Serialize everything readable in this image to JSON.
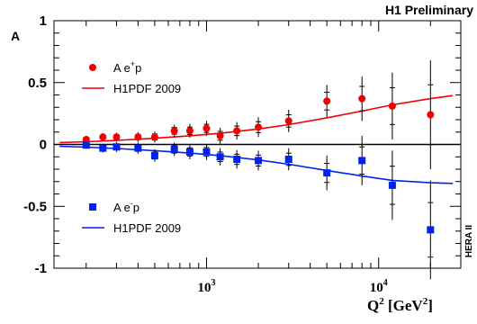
{
  "chart_data": {
    "type": "scatter",
    "header": "H1 Preliminary",
    "side_label": "HERA II",
    "ylabel": "A",
    "xlabel": "Q² [GeV²]",
    "xscale": "log",
    "xlim": [
      130,
      30000
    ],
    "ylim": [
      -1,
      1
    ],
    "yticks": [
      {
        "value": 1,
        "label": "1"
      },
      {
        "value": 0.5,
        "label": "0.5"
      },
      {
        "value": 0,
        "label": "0"
      },
      {
        "value": -0.5,
        "label": "-0.5"
      },
      {
        "value": -1,
        "label": "-1"
      }
    ],
    "xticks": [
      {
        "value": 1000,
        "base": "10",
        "exp": "3"
      },
      {
        "value": 10000,
        "base": "10",
        "exp": "4"
      }
    ],
    "zero_line": true,
    "legend_placement": "left, inside plot",
    "series": [
      {
        "name": "A e⁺p",
        "kind": "data",
        "marker": "circle",
        "color": "#ee0000",
        "points": [
          {
            "x": 200,
            "y": 0.04,
            "err": 0.025
          },
          {
            "x": 250,
            "y": 0.06,
            "err": 0.03
          },
          {
            "x": 300,
            "y": 0.06,
            "err": 0.035
          },
          {
            "x": 400,
            "y": 0.06,
            "err": 0.04
          },
          {
            "x": 500,
            "y": 0.06,
            "err": 0.045
          },
          {
            "x": 650,
            "y": 0.11,
            "err": 0.05
          },
          {
            "x": 800,
            "y": 0.11,
            "err": 0.055
          },
          {
            "x": 1000,
            "y": 0.13,
            "err": 0.06
          },
          {
            "x": 1200,
            "y": 0.07,
            "err": 0.065
          },
          {
            "x": 1500,
            "y": 0.11,
            "err": 0.07
          },
          {
            "x": 2000,
            "y": 0.14,
            "err": 0.08
          },
          {
            "x": 3000,
            "y": 0.19,
            "err": 0.09
          },
          {
            "x": 5000,
            "y": 0.35,
            "err": 0.13
          },
          {
            "x": 8000,
            "y": 0.37,
            "err": 0.18
          },
          {
            "x": 12000,
            "y": 0.31,
            "err": 0.27
          },
          {
            "x": 20000,
            "y": 0.24,
            "err": 0.44
          }
        ]
      },
      {
        "name": "H1PDF 2009",
        "kind": "prediction",
        "line": true,
        "color": "#ee0000",
        "x": [
          140,
          200,
          300,
          500,
          800,
          1200,
          2000,
          3000,
          5000,
          8000,
          12000,
          20000,
          27000
        ],
        "y": [
          0.015,
          0.022,
          0.033,
          0.05,
          0.07,
          0.09,
          0.125,
          0.16,
          0.215,
          0.27,
          0.32,
          0.37,
          0.395
        ]
      },
      {
        "name": "A e⁻p",
        "kind": "data",
        "marker": "square",
        "color": "#0022ee",
        "points": [
          {
            "x": 200,
            "y": -0.005,
            "err": 0.03
          },
          {
            "x": 250,
            "y": -0.03,
            "err": 0.035
          },
          {
            "x": 300,
            "y": -0.02,
            "err": 0.04
          },
          {
            "x": 400,
            "y": -0.03,
            "err": 0.045
          },
          {
            "x": 500,
            "y": -0.09,
            "err": 0.05
          },
          {
            "x": 650,
            "y": -0.04,
            "err": 0.055
          },
          {
            "x": 800,
            "y": -0.06,
            "err": 0.06
          },
          {
            "x": 1000,
            "y": -0.06,
            "err": 0.065
          },
          {
            "x": 1200,
            "y": -0.1,
            "err": 0.07
          },
          {
            "x": 1500,
            "y": -0.12,
            "err": 0.075
          },
          {
            "x": 2000,
            "y": -0.13,
            "err": 0.08
          },
          {
            "x": 3000,
            "y": -0.12,
            "err": 0.09
          },
          {
            "x": 5000,
            "y": -0.23,
            "err": 0.14
          },
          {
            "x": 8000,
            "y": -0.13,
            "err": 0.2
          },
          {
            "x": 12000,
            "y": -0.33,
            "err": 0.28
          },
          {
            "x": 20000,
            "y": -0.69,
            "err": 0.4
          }
        ]
      },
      {
        "name": "H1PDF 2009",
        "kind": "prediction",
        "line": true,
        "color": "#0022ee",
        "x": [
          140,
          200,
          300,
          500,
          800,
          1200,
          2000,
          3000,
          5000,
          8000,
          12000,
          20000,
          27000
        ],
        "y": [
          -0.015,
          -0.022,
          -0.033,
          -0.05,
          -0.07,
          -0.09,
          -0.125,
          -0.16,
          -0.21,
          -0.255,
          -0.29,
          -0.31,
          -0.315
        ]
      }
    ],
    "legends": [
      {
        "series_index": 0,
        "line_index": 1,
        "label_main": "A  e",
        "label_sup": "+",
        "label_tail": "p",
        "line_label": "H1PDF 2009"
      },
      {
        "series_index": 2,
        "line_index": 3,
        "label_main": "A  e",
        "label_sup": "-",
        "label_tail": "p",
        "line_label": "H1PDF 2009"
      }
    ]
  }
}
